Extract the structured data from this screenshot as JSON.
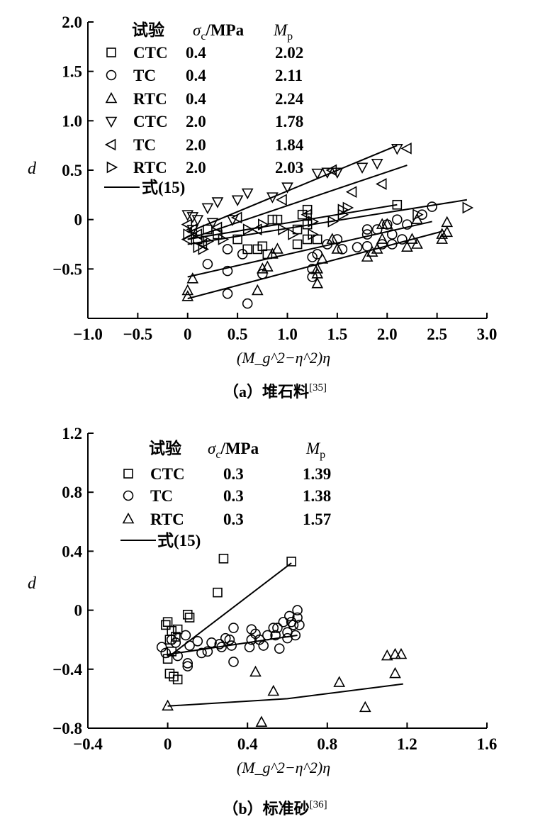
{
  "chart_data": [
    {
      "type": "scatter",
      "panel_caption": "（a）堆石料",
      "caption_ref": "[35]",
      "xlabel": "(M_g^2−η^2)η",
      "ylabel": "d",
      "xlim": [
        -1.0,
        3.0
      ],
      "ylim": [
        -1.0,
        2.0
      ],
      "xticks": [
        -1.0,
        -0.5,
        0,
        0.5,
        1.0,
        1.5,
        2.0,
        2.5,
        3.0
      ],
      "xtick_labels": [
        "−1.0",
        "−0.5",
        "0",
        "0.5",
        "1.0",
        "1.5",
        "2.0",
        "2.5",
        "3.0"
      ],
      "yticks": [
        -0.5,
        0,
        0.5,
        1.0,
        1.5,
        2.0
      ],
      "ytick_labels": [
        "−0.5",
        "0",
        "0.5",
        "1.0",
        "1.5",
        "2.0"
      ],
      "legend": {
        "placement": "top-left",
        "headers": [
          "试验",
          "σ",
          "c",
          "/MPa",
          "M",
          "p"
        ],
        "line_label": "式(15)"
      },
      "series": [
        {
          "name": "CTC",
          "sigma_c": "0.4",
          "Mp": "2.02",
          "marker": "square",
          "points": [
            [
              0.9,
              0
            ],
            [
              0.85,
              0
            ],
            [
              1.15,
              0.05
            ],
            [
              1.2,
              0.1
            ],
            [
              2.1,
              0.15
            ],
            [
              1.1,
              -0.1
            ],
            [
              1.2,
              -0.2
            ],
            [
              1.1,
              -0.25
            ],
            [
              0.7,
              -0.3
            ],
            [
              0.5,
              -0.2
            ],
            [
              0.6,
              -0.3
            ],
            [
              0.8,
              -0.35
            ],
            [
              1.3,
              -0.2
            ],
            [
              0.3,
              -0.15
            ],
            [
              0.1,
              -0.2
            ],
            [
              0.2,
              -0.1
            ],
            [
              1.2,
              -0.05
            ],
            [
              0.75,
              -0.27
            ]
          ],
          "fit": [
            [
              0,
              -0.2
            ],
            [
              2.1,
              0.15
            ]
          ]
        },
        {
          "name": "TC",
          "sigma_c": "0.4",
          "Mp": "2.11",
          "marker": "circle",
          "points": [
            [
              0.2,
              -0.45
            ],
            [
              0.4,
              -0.52
            ],
            [
              0.4,
              -0.75
            ],
            [
              0.6,
              -0.85
            ],
            [
              0.75,
              -0.55
            ],
            [
              0.55,
              -0.35
            ],
            [
              0.4,
              -0.3
            ],
            [
              1.25,
              -0.38
            ],
            [
              1.25,
              -0.5
            ],
            [
              1.25,
              -0.58
            ],
            [
              1.4,
              -0.25
            ],
            [
              1.5,
              -0.2
            ],
            [
              1.55,
              -0.3
            ],
            [
              1.7,
              -0.28
            ],
            [
              1.8,
              -0.1
            ],
            [
              1.8,
              -0.15
            ],
            [
              1.8,
              -0.27
            ],
            [
              1.9,
              -0.1
            ],
            [
              2.0,
              -0.05
            ],
            [
              2.05,
              -0.15
            ],
            [
              2.05,
              -0.25
            ],
            [
              2.1,
              0
            ],
            [
              2.15,
              -0.2
            ],
            [
              2.2,
              -0.05
            ],
            [
              2.35,
              0.05
            ],
            [
              2.45,
              0.13
            ],
            [
              1.95,
              -0.25
            ],
            [
              1.3,
              -0.35
            ]
          ],
          "fit": [
            [
              0,
              -0.58
            ],
            [
              2.45,
              -0.02
            ]
          ]
        },
        {
          "name": "RTC",
          "sigma_c": "0.4",
          "Mp": "2.24",
          "marker": "triangle-up",
          "points": [
            [
              0,
              -0.72
            ],
            [
              0,
              -0.78
            ],
            [
              0.05,
              -0.6
            ],
            [
              0.7,
              -0.72
            ],
            [
              0.75,
              -0.5
            ],
            [
              0.8,
              -0.48
            ],
            [
              0.85,
              -0.35
            ],
            [
              0.9,
              -0.3
            ],
            [
              1.3,
              -0.55
            ],
            [
              1.3,
              -0.65
            ],
            [
              1.3,
              -0.5
            ],
            [
              1.35,
              -0.4
            ],
            [
              1.5,
              -0.3
            ],
            [
              1.45,
              -0.2
            ],
            [
              1.8,
              -0.38
            ],
            [
              1.85,
              -0.33
            ],
            [
              1.9,
              -0.3
            ],
            [
              1.95,
              -0.2
            ],
            [
              1.95,
              -0.05
            ],
            [
              2.2,
              -0.28
            ],
            [
              2.25,
              -0.2
            ],
            [
              2.3,
              -0.25
            ],
            [
              2.3,
              0
            ],
            [
              2.55,
              -0.15
            ],
            [
              2.55,
              -0.2
            ],
            [
              2.6,
              -0.03
            ],
            [
              2.6,
              -0.13
            ],
            [
              2.0,
              -0.05
            ]
          ],
          "fit": [
            [
              0,
              -0.8
            ],
            [
              2.55,
              -0.12
            ]
          ]
        },
        {
          "name": "CTC",
          "sigma_c": "2.0",
          "Mp": "1.78",
          "marker": "triangle-down",
          "points": [
            [
              0,
              0.05
            ],
            [
              0.05,
              0.03
            ],
            [
              0.2,
              0.12
            ],
            [
              0.3,
              0.18
            ],
            [
              0.5,
              0.2
            ],
            [
              0.6,
              0.27
            ],
            [
              0.85,
              0.23
            ],
            [
              1.0,
              0.33
            ],
            [
              1.3,
              0.47
            ],
            [
              1.4,
              0.48
            ],
            [
              1.5,
              0.48
            ],
            [
              1.75,
              0.53
            ],
            [
              1.9,
              0.57
            ],
            [
              2.1,
              0.72
            ],
            [
              0.1,
              0
            ],
            [
              0.25,
              -0.03
            ],
            [
              0.45,
              0
            ],
            [
              0.05,
              -0.1
            ]
          ],
          "fit": [
            [
              0,
              -0.13
            ],
            [
              2.1,
              0.75
            ]
          ]
        },
        {
          "name": "TC",
          "sigma_c": "2.0",
          "Mp": "1.84",
          "marker": "triangle-left",
          "points": [
            [
              0,
              -0.05
            ],
            [
              0.05,
              -0.1
            ],
            [
              0.1,
              -0.15
            ],
            [
              0.3,
              -0.08
            ],
            [
              0.5,
              0.02
            ],
            [
              0.95,
              0.2
            ],
            [
              1.45,
              0.5
            ],
            [
              1.65,
              0.28
            ],
            [
              1.95,
              0.36
            ],
            [
              2.2,
              0.72
            ],
            [
              0.15,
              -0.25
            ],
            [
              0,
              -0.2
            ],
            [
              0.7,
              -0.1
            ],
            [
              1.2,
              0.05
            ]
          ],
          "fit": [
            [
              0,
              -0.2
            ],
            [
              2.2,
              0.55
            ]
          ]
        },
        {
          "name": "RTC",
          "sigma_c": "2.0",
          "Mp": "2.03",
          "marker": "triangle-right",
          "points": [
            [
              0,
              -0.15
            ],
            [
              0.1,
              -0.28
            ],
            [
              0.2,
              -0.22
            ],
            [
              0.35,
              -0.2
            ],
            [
              0.6,
              -0.1
            ],
            [
              0.75,
              -0.05
            ],
            [
              0.95,
              -0.1
            ],
            [
              1.25,
              -0.02
            ],
            [
              1.45,
              -0.02
            ],
            [
              1.55,
              0.05
            ],
            [
              1.6,
              0.12
            ],
            [
              1.55,
              0.1
            ],
            [
              2.3,
              0.05
            ],
            [
              2.8,
              0.12
            ],
            [
              0.15,
              -0.3
            ],
            [
              1.25,
              -0.15
            ],
            [
              1.05,
              -0.15
            ]
          ],
          "fit": [
            [
              0,
              -0.25
            ],
            [
              2.8,
              0.2
            ]
          ]
        }
      ]
    },
    {
      "type": "scatter",
      "panel_caption": "（b）标准砂",
      "caption_ref": "[36]",
      "xlabel": "(M_g^2−η^2)η",
      "ylabel": "d",
      "xlim": [
        -0.4,
        1.6
      ],
      "ylim": [
        -0.8,
        1.2
      ],
      "xticks": [
        -0.4,
        0,
        0.4,
        0.8,
        1.2,
        1.6
      ],
      "xtick_labels": [
        "−0.4",
        "0",
        "0.4",
        "0.8",
        "1.2",
        "1.6"
      ],
      "yticks": [
        -0.8,
        -0.4,
        0,
        0.4,
        0.8,
        1.2
      ],
      "ytick_labels": [
        "−0.8",
        "−0.4",
        "0",
        "0.4",
        "0.8",
        "1.2"
      ],
      "legend": {
        "placement": "top-left",
        "headers": [
          "试验",
          "σ",
          "c",
          "/MPa",
          "M",
          "p"
        ],
        "line_label": "式(15)"
      },
      "series": [
        {
          "name": "CTC",
          "sigma_c": "0.3",
          "Mp": "1.39",
          "marker": "square",
          "points": [
            [
              -0.01,
              -0.1
            ],
            [
              0,
              -0.08
            ],
            [
              0.01,
              -0.2
            ],
            [
              0.02,
              -0.14
            ],
            [
              0.05,
              -0.13
            ],
            [
              0.04,
              -0.18
            ],
            [
              0.1,
              -0.03
            ],
            [
              0.11,
              -0.05
            ],
            [
              0.25,
              0.12
            ],
            [
              0.28,
              0.35
            ],
            [
              0.62,
              0.33
            ],
            [
              0,
              -0.33
            ],
            [
              0.01,
              -0.43
            ],
            [
              0.03,
              -0.45
            ],
            [
              0.05,
              -0.47
            ],
            [
              0.02,
              -0.28
            ]
          ],
          "fit": [
            [
              0,
              -0.32
            ],
            [
              0.62,
              0.32
            ]
          ]
        },
        {
          "name": "TC",
          "sigma_c": "0.3",
          "Mp": "1.38",
          "marker": "circle",
          "points": [
            [
              -0.03,
              -0.25
            ],
            [
              -0.01,
              -0.29
            ],
            [
              0.02,
              -0.2
            ],
            [
              0.04,
              -0.22
            ],
            [
              0.05,
              -0.31
            ],
            [
              0.09,
              -0.17
            ],
            [
              0.1,
              -0.36
            ],
            [
              0.1,
              -0.38
            ],
            [
              0.11,
              -0.24
            ],
            [
              0.15,
              -0.21
            ],
            [
              0.17,
              -0.29
            ],
            [
              0.2,
              -0.28
            ],
            [
              0.22,
              -0.22
            ],
            [
              0.26,
              -0.23
            ],
            [
              0.27,
              -0.25
            ],
            [
              0.29,
              -0.19
            ],
            [
              0.31,
              -0.2
            ],
            [
              0.32,
              -0.24
            ],
            [
              0.33,
              -0.12
            ],
            [
              0.33,
              -0.35
            ],
            [
              0.41,
              -0.25
            ],
            [
              0.42,
              -0.13
            ],
            [
              0.42,
              -0.2
            ],
            [
              0.44,
              -0.16
            ],
            [
              0.46,
              -0.2
            ],
            [
              0.48,
              -0.24
            ],
            [
              0.5,
              -0.17
            ],
            [
              0.53,
              -0.12
            ],
            [
              0.54,
              -0.17
            ],
            [
              0.55,
              -0.12
            ],
            [
              0.56,
              -0.26
            ],
            [
              0.58,
              -0.08
            ],
            [
              0.6,
              -0.15
            ],
            [
              0.6,
              -0.19
            ],
            [
              0.61,
              -0.04
            ],
            [
              0.62,
              -0.08
            ],
            [
              0.63,
              -0.1
            ],
            [
              0.64,
              -0.17
            ],
            [
              0.65,
              0
            ],
            [
              0.65,
              -0.05
            ],
            [
              0.66,
              -0.1
            ]
          ],
          "fit": [
            [
              0,
              -0.3
            ],
            [
              0.65,
              -0.17
            ]
          ]
        },
        {
          "name": "RTC",
          "sigma_c": "0.3",
          "Mp": "1.57",
          "marker": "triangle-up",
          "points": [
            [
              0,
              -0.65
            ],
            [
              0.44,
              -0.42
            ],
            [
              0.47,
              -0.76
            ],
            [
              0.53,
              -0.55
            ],
            [
              0.86,
              -0.49
            ],
            [
              0.99,
              -0.66
            ],
            [
              1.1,
              -0.31
            ],
            [
              1.14,
              -0.3
            ],
            [
              1.17,
              -0.3
            ],
            [
              1.14,
              -0.43
            ]
          ],
          "fit": [
            [
              0,
              -0.65
            ],
            [
              0.6,
              -0.6
            ],
            [
              1.18,
              -0.5
            ]
          ]
        }
      ]
    }
  ]
}
